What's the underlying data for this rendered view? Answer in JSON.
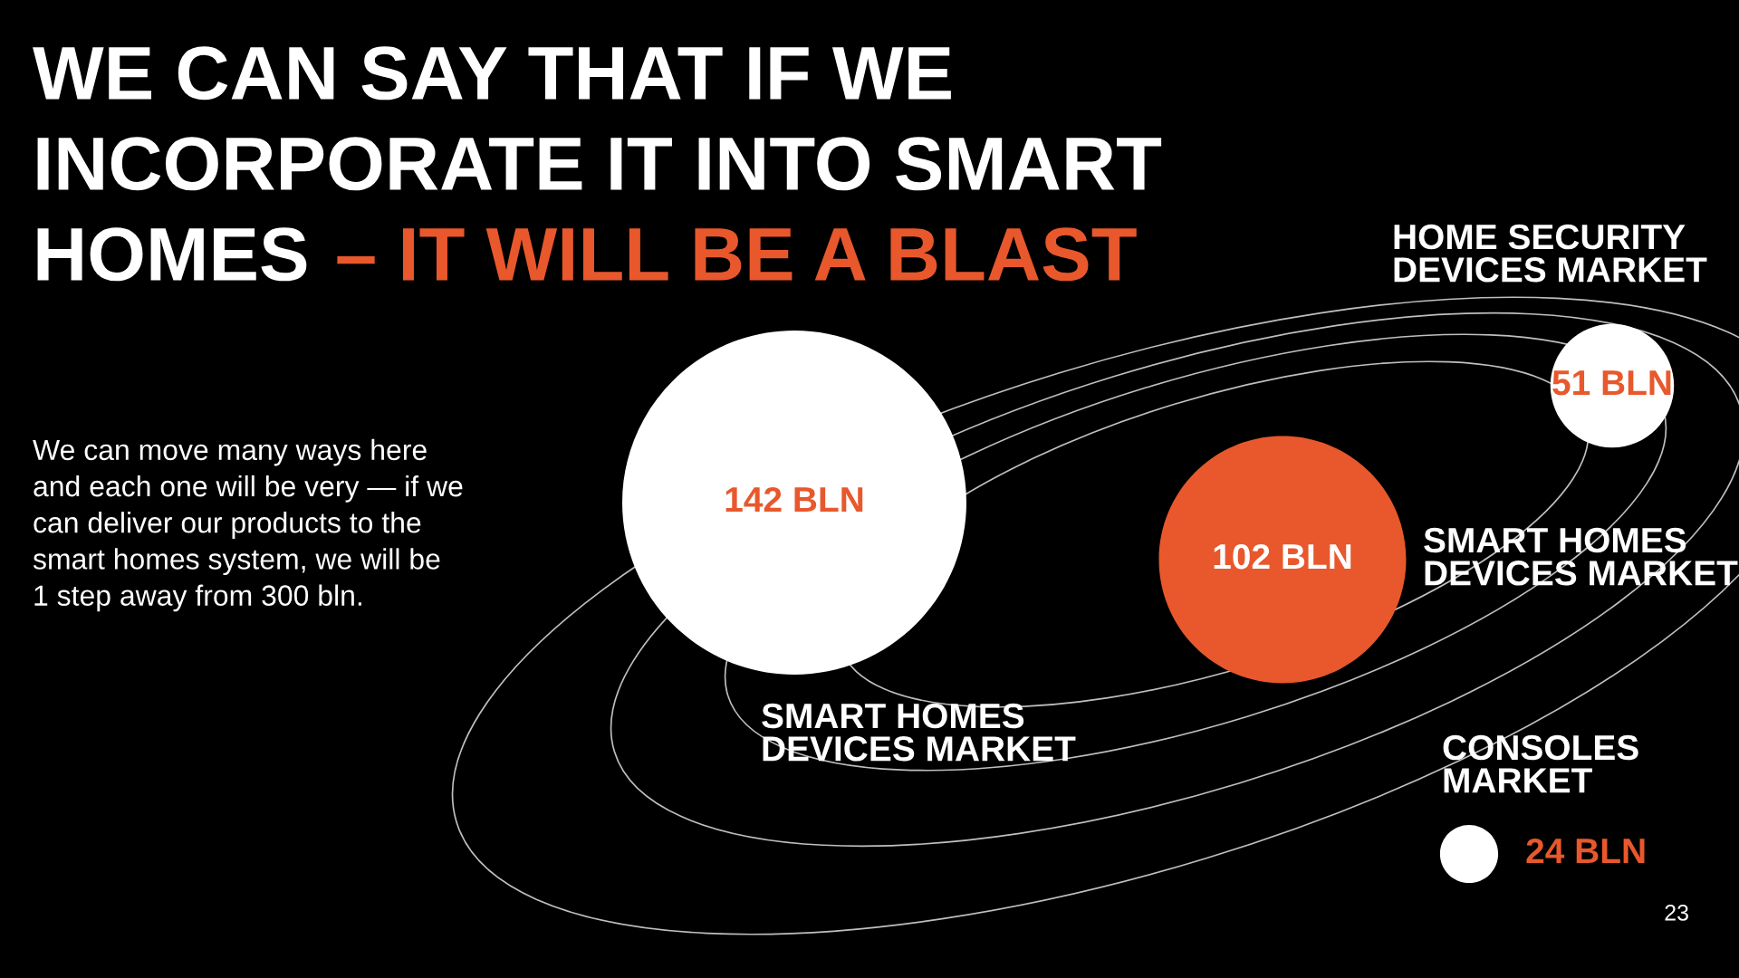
{
  "chart_data": {
    "type": "other",
    "title": "WE CAN SAY THAT IF WE\nINCORPORATE IT INTO SMART\nHOMES",
    "subtitle": "– IT WILL BE A BLAST",
    "categories": [
      "SMART HOMES\nDEVICES MARKET",
      "SMART HOMES\nDEVICES MARKET",
      "HOME SECURITY\nDEVICES MARKET",
      "CONSOLES\nMARKET"
    ],
    "values": [
      142,
      102,
      51,
      24
    ],
    "value_labels": [
      "142 BLN",
      "102 BLN",
      "51 BLN",
      "24 BLN"
    ],
    "colors": [
      "#ffffff",
      "#e8582c",
      "#ffffff",
      "#ffffff"
    ],
    "annotations": [
      "We can move many ways here\nand each one will be very — if we\ncan deliver our products to the\nsmart homes system, we will be\n1 step away from 300 bln.",
      "23"
    ]
  }
}
